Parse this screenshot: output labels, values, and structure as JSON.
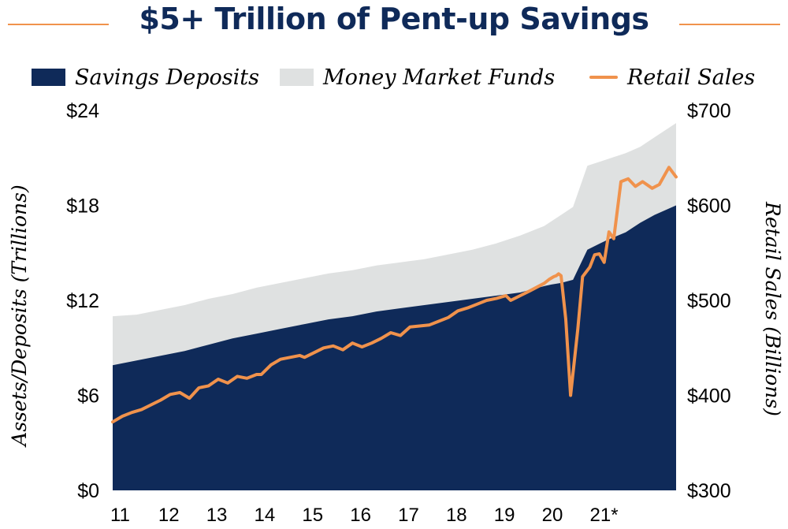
{
  "colors": {
    "navy": "#0f2a59",
    "gray": "#dfe1e1",
    "orange": "#f0924c",
    "text": "#000000",
    "title": "#0f2a59"
  },
  "chart_data": {
    "type": "area",
    "title": "$5+ Trillion of Pent-up Savings",
    "legend": [
      {
        "label": "Savings Deposits",
        "kind": "area",
        "color": "#0f2a59"
      },
      {
        "label": "Money Market Funds",
        "kind": "area",
        "color": "#dfe1e1"
      },
      {
        "label": "Retail Sales",
        "kind": "line",
        "color": "#f0924c"
      }
    ],
    "legend_position": "top",
    "ylabel_left": "Assets/Deposits (Trillions)",
    "ylabel_right": "Retail Sales (Billions)",
    "y_left_ticks": [
      "$0",
      "$6",
      "$12",
      "$18",
      "$24"
    ],
    "y_left_range": [
      0,
      24
    ],
    "y_right_ticks": [
      "$300",
      "$400",
      "$500",
      "$600",
      "$700"
    ],
    "y_right_range": [
      300,
      700
    ],
    "x_ticks": [
      "11",
      "12",
      "13",
      "14",
      "15",
      "16",
      "17",
      "18",
      "19",
      "20",
      "21*"
    ],
    "x_range": [
      2011.0,
      2022.75
    ],
    "grid": false,
    "series": [
      {
        "name": "Savings Deposits",
        "type": "area",
        "axis": "left",
        "x": [
          2011.0,
          2011.5,
          2012.0,
          2012.5,
          2013.0,
          2013.5,
          2014.0,
          2014.5,
          2015.0,
          2015.5,
          2016.0,
          2016.5,
          2017.0,
          2017.5,
          2018.0,
          2018.5,
          2019.0,
          2019.5,
          2020.0,
          2020.15,
          2020.35,
          2020.6,
          2020.9,
          2021.3,
          2021.7,
          2022.0,
          2022.3,
          2022.75
        ],
        "values": [
          7.9,
          8.2,
          8.5,
          8.8,
          9.2,
          9.6,
          9.9,
          10.2,
          10.5,
          10.8,
          11.0,
          11.3,
          11.5,
          11.7,
          11.9,
          12.1,
          12.3,
          12.5,
          12.9,
          13.0,
          13.1,
          13.3,
          15.2,
          15.8,
          16.3,
          16.9,
          17.4,
          18.0
        ]
      },
      {
        "name": "Money Market Funds",
        "type": "area",
        "stacked_on": "Savings Deposits",
        "axis": "left",
        "x": [
          2011.0,
          2011.5,
          2012.0,
          2012.5,
          2013.0,
          2013.5,
          2014.0,
          2014.5,
          2015.0,
          2015.5,
          2016.0,
          2016.5,
          2017.0,
          2017.5,
          2018.0,
          2018.5,
          2019.0,
          2019.5,
          2020.0,
          2020.15,
          2020.35,
          2020.6,
          2020.9,
          2021.3,
          2021.7,
          2022.0,
          2022.3,
          2022.75
        ],
        "values": [
          3.1,
          2.9,
          2.9,
          2.9,
          2.9,
          2.8,
          2.9,
          2.9,
          2.9,
          2.9,
          2.9,
          2.9,
          2.9,
          2.9,
          3.0,
          3.1,
          3.3,
          3.6,
          3.8,
          4.0,
          4.3,
          4.6,
          5.3,
          5.1,
          5.0,
          4.8,
          4.9,
          5.2
        ]
      },
      {
        "name": "Retail Sales",
        "type": "line",
        "axis": "right",
        "x": [
          2011.0,
          2011.2,
          2011.4,
          2011.6,
          2011.8,
          2012.0,
          2012.2,
          2012.4,
          2012.6,
          2012.8,
          2013.0,
          2013.2,
          2013.4,
          2013.6,
          2013.8,
          2014.0,
          2014.1,
          2014.3,
          2014.5,
          2014.7,
          2014.9,
          2015.0,
          2015.2,
          2015.4,
          2015.6,
          2015.8,
          2016.0,
          2016.2,
          2016.4,
          2016.6,
          2016.8,
          2017.0,
          2017.2,
          2017.4,
          2017.6,
          2017.8,
          2018.0,
          2018.2,
          2018.4,
          2018.6,
          2018.8,
          2019.0,
          2019.2,
          2019.3,
          2019.5,
          2019.7,
          2020.0,
          2020.1,
          2020.2,
          2020.25,
          2020.3,
          2020.35,
          2020.45,
          2020.55,
          2020.7,
          2020.8,
          2020.95,
          2021.05,
          2021.15,
          2021.25,
          2021.35,
          2021.45,
          2021.6,
          2021.75,
          2021.9,
          2022.05,
          2022.25,
          2022.4,
          2022.6,
          2022.75
        ],
        "values": [
          372,
          378,
          382,
          385,
          390,
          395,
          401,
          403,
          397,
          408,
          410,
          417,
          413,
          420,
          418,
          422,
          422,
          432,
          438,
          440,
          442,
          440,
          445,
          450,
          452,
          448,
          455,
          451,
          455,
          460,
          466,
          463,
          472,
          473,
          474,
          478,
          482,
          489,
          492,
          496,
          500,
          502,
          505,
          500,
          505,
          510,
          518,
          522,
          525,
          526,
          528,
          526,
          480,
          400,
          470,
          525,
          535,
          548,
          549,
          540,
          572,
          565,
          625,
          628,
          620,
          625,
          618,
          622,
          640,
          630
        ]
      }
    ]
  }
}
